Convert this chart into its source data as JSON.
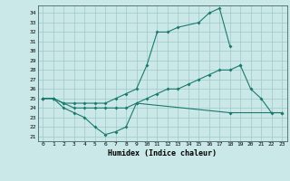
{
  "title": "",
  "xlabel": "Humidex (Indice chaleur)",
  "background_color": "#cbe8e8",
  "line_color": "#1a7a6e",
  "grid_color": "#a0c8c8",
  "xlim": [
    -0.5,
    23.5
  ],
  "ylim": [
    20.5,
    34.8
  ],
  "yticks": [
    21,
    22,
    23,
    24,
    25,
    26,
    27,
    28,
    29,
    30,
    31,
    32,
    33,
    34
  ],
  "xticks": [
    0,
    1,
    2,
    3,
    4,
    5,
    6,
    7,
    8,
    9,
    10,
    11,
    12,
    13,
    14,
    15,
    16,
    17,
    18,
    19,
    20,
    21,
    22,
    23
  ],
  "line1_pts_x": [
    0,
    1,
    2,
    3,
    4,
    5,
    6,
    7,
    8,
    9,
    18,
    23
  ],
  "line1_pts_y": [
    25.0,
    25.0,
    24.0,
    23.5,
    23.0,
    22.0,
    21.2,
    21.5,
    22.0,
    24.5,
    23.5,
    23.5
  ],
  "line2_pts_x": [
    0,
    1,
    2,
    3,
    4,
    5,
    6,
    7,
    8,
    9,
    10,
    11,
    12,
    13,
    14,
    15,
    16,
    17,
    18,
    19
  ],
  "line2_pts_y": [
    25.0,
    25.0,
    24.5,
    24.0,
    24.0,
    24.0,
    24.0,
    24.0,
    24.0,
    24.5,
    25.0,
    25.5,
    26.0,
    26.0,
    26.5,
    27.0,
    27.5,
    28.0,
    28.0,
    28.5
  ],
  "line3_pts_x": [
    0,
    1,
    2,
    3,
    4,
    5,
    6,
    7,
    8,
    9,
    10,
    11,
    12,
    13,
    15,
    16,
    17,
    18
  ],
  "line3_pts_y": [
    25.0,
    25.0,
    24.5,
    24.5,
    24.5,
    24.5,
    24.5,
    25.0,
    25.5,
    26.0,
    28.5,
    32.0,
    32.0,
    32.5,
    33.0,
    34.0,
    34.5,
    30.5
  ],
  "line4_pts_x": [
    19,
    20,
    21,
    22,
    23
  ],
  "line4_pts_y": [
    28.5,
    26.0,
    25.0,
    23.5,
    23.5
  ]
}
